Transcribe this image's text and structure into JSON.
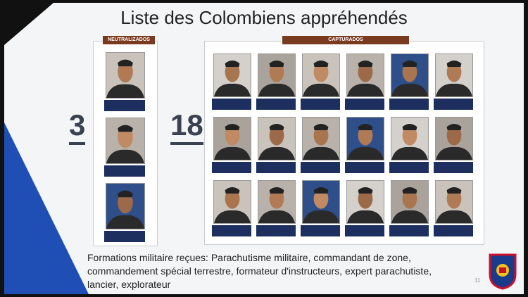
{
  "title": "Liste des Colombiens appréhendés",
  "panels": [
    {
      "header": "NEUTRALIZADOS",
      "count": "3"
    },
    {
      "header": "CAPTURADOS",
      "count": "18"
    }
  ],
  "caption": [
    "Formations militaire reçues: Parachutisme militaire, commandant de zone,",
    "commandement spécial terrestre, formateur d'instructeurs, expert parachutiste,",
    "lancier, explorateur"
  ],
  "page_number": "11"
}
